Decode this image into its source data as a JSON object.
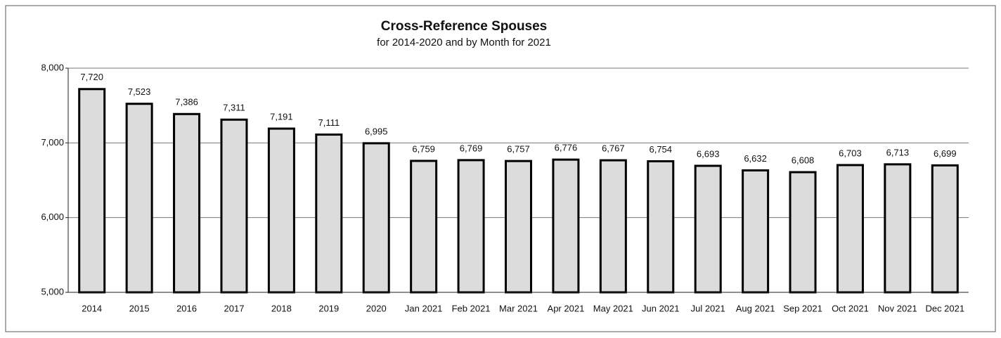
{
  "chart_data": {
    "type": "bar",
    "title": "Cross-Reference Spouses",
    "subtitle": "for 2014-2020 and by Month for 2021",
    "categories": [
      "2014",
      "2015",
      "2016",
      "2017",
      "2018",
      "2019",
      "2020",
      "Jan 2021",
      "Feb 2021",
      "Mar 2021",
      "Apr 2021",
      "May 2021",
      "Jun 2021",
      "Jul 2021",
      "Aug 2021",
      "Sep 2021",
      "Oct 2021",
      "Nov 2021",
      "Dec 2021"
    ],
    "values": [
      7720,
      7523,
      7386,
      7311,
      7191,
      7111,
      6995,
      6759,
      6769,
      6757,
      6776,
      6767,
      6754,
      6693,
      6632,
      6608,
      6703,
      6713,
      6699
    ],
    "value_labels": [
      "7,720",
      "7,523",
      "7,386",
      "7,311",
      "7,191",
      "7,111",
      "6,995",
      "6,759",
      "6,769",
      "6,757",
      "6,776",
      "6,767",
      "6,754",
      "6,693",
      "6,632",
      "6,608",
      "6,703",
      "6,713",
      "6,699"
    ],
    "color": "#dcdcdc",
    "ylim": [
      5000,
      8000
    ],
    "yticks": [
      {
        "value": 5000,
        "label": "5,000"
      },
      {
        "value": 6000,
        "label": "6,000"
      },
      {
        "value": 7000,
        "label": "7,000"
      },
      {
        "value": 8000,
        "label": "8,000"
      }
    ],
    "grid": true
  }
}
